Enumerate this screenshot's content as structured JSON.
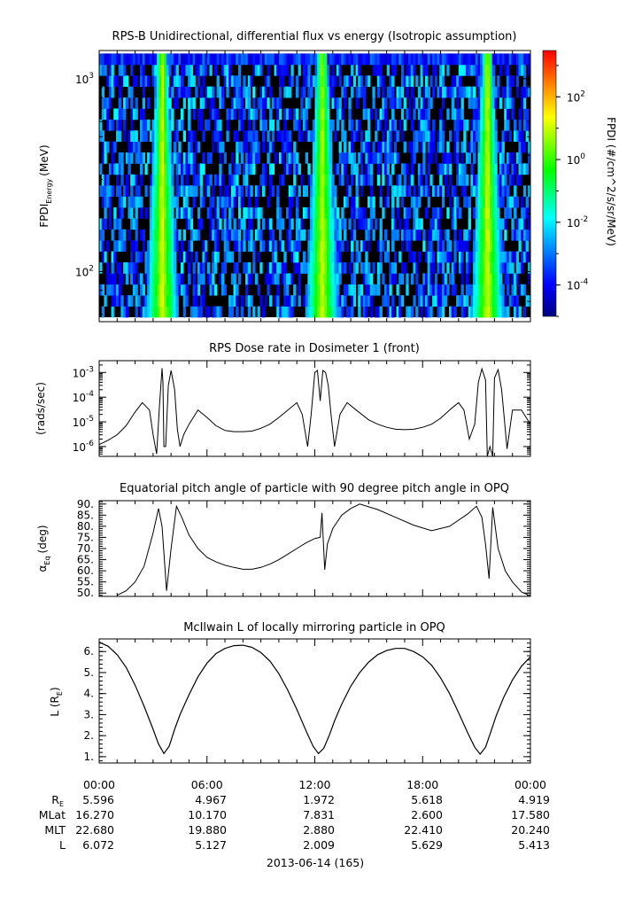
{
  "chart_data": [
    {
      "type": "heatmap",
      "title": "RPS-B  Unidirectional, differential flux vs energy (Isotropic assumption)",
      "ylabel_main": "FPDI",
      "ylabel_sub": "Energy",
      "ylabel_unit": "(MeV)",
      "y_scale": "log",
      "ylim": [
        55,
        1400
      ],
      "y_ticks": [
        {
          "value": 100,
          "base": "10",
          "exp": "2"
        },
        {
          "value": 1000,
          "base": "10",
          "exp": "3"
        }
      ],
      "energy_bins_range": [
        58,
        1350
      ],
      "flux_peak_times_hours": [
        3.5,
        12.4,
        21.6
      ],
      "colorbar": {
        "label": "FPDI (#/cm^2/s/sr/MeV)",
        "scale": "log",
        "range": [
          1e-05,
          3000
        ],
        "ticks": [
          {
            "value": 0.0001,
            "base": "10",
            "exp": "-4"
          },
          {
            "value": 0.01,
            "base": "10",
            "exp": "-2"
          },
          {
            "value": 1,
            "base": "10",
            "exp": "0"
          },
          {
            "value": 100,
            "base": "10",
            "exp": "2"
          }
        ],
        "colormap": [
          "#000080",
          "#0000ff",
          "#00ffff",
          "#00ff00",
          "#ffff00",
          "#ff0000"
        ]
      }
    },
    {
      "type": "line",
      "title": "RPS  Dose rate in Dosimeter 1 (front)",
      "ylabel": "(rads/sec)",
      "y_scale": "log",
      "ylim": [
        4e-07,
        0.003
      ],
      "y_ticks": [
        {
          "value": 1e-06,
          "base": "10",
          "exp": "-6"
        },
        {
          "value": 1e-05,
          "base": "10",
          "exp": "-5"
        },
        {
          "value": 0.0001,
          "base": "10",
          "exp": "-4"
        },
        {
          "value": 0.001,
          "base": "10",
          "exp": "-3"
        }
      ],
      "series": [
        {
          "x": [
            0,
            0.5,
            1.0,
            1.5,
            2.0,
            2.4,
            2.8,
            3.0,
            3.2,
            3.35,
            3.5,
            3.55,
            3.6,
            3.7,
            3.85,
            4.0,
            4.2,
            4.35,
            4.5,
            4.7,
            5.0,
            5.5,
            6.0,
            6.5,
            7.0,
            7.5,
            8.0,
            8.5,
            9.0,
            9.5,
            10.0,
            10.5,
            11.0,
            11.3,
            11.6,
            11.8,
            12.0,
            12.15,
            12.3,
            12.45,
            12.6,
            12.75,
            12.9,
            13.1,
            13.4,
            13.8,
            14.3,
            15.0,
            15.5,
            16.0,
            16.5,
            17.0,
            17.5,
            18.0,
            18.5,
            19.0,
            19.5,
            20.0,
            20.3,
            20.6,
            20.9,
            21.1,
            21.3,
            21.5,
            21.6,
            21.75,
            21.9,
            22.0,
            22.2,
            22.4,
            22.7,
            23.0,
            23.5,
            24.0
          ],
          "y": [
            1.2e-06,
            1.8e-06,
            3e-06,
            7e-06,
            2.5e-05,
            6e-05,
            3e-05,
            3e-06,
            5e-07,
            4e-05,
            0.0015,
            0.0004,
            1e-06,
            1e-06,
            0.0003,
            0.0012,
            0.0002,
            5e-06,
            1e-06,
            3e-06,
            8e-06,
            3e-05,
            1.5e-05,
            7e-06,
            4.5e-06,
            4e-06,
            4e-06,
            4.2e-06,
            5.5e-06,
            8e-06,
            1.5e-05,
            3e-05,
            6e-05,
            2e-05,
            1e-06,
            2e-05,
            0.001,
            0.0012,
            7e-05,
            0.0012,
            0.001,
            0.0003,
            2e-05,
            1e-06,
            2e-05,
            6e-05,
            3e-05,
            1.2e-05,
            8e-06,
            6e-06,
            5e-06,
            4.8e-06,
            5e-06,
            6e-06,
            8e-06,
            1.4e-05,
            3e-05,
            6e-05,
            3e-05,
            2e-06,
            8e-06,
            0.0004,
            0.0014,
            0.0005,
            4e-07,
            1e-06,
            4e-07,
            0.0006,
            0.0013,
            0.0002,
            8e-07,
            3e-05,
            3e-05,
            8e-06
          ]
        }
      ]
    },
    {
      "type": "line",
      "title": "Equatorial pitch angle of particle with 90 degree pitch angle in OPQ",
      "ylabel_main": "α",
      "ylabel_sub": "Eq",
      "ylabel_unit": "(deg)",
      "ylim": [
        48.5,
        91.5
      ],
      "y_ticks": [
        50,
        55,
        60,
        65,
        70,
        75,
        80,
        85,
        90
      ],
      "y_tick_labels": [
        "50.",
        "55.",
        "60.",
        "65.",
        "70.",
        "75.",
        "80.",
        "85.",
        "90."
      ],
      "series": [
        {
          "x": [
            1.0,
            1.5,
            2.0,
            2.5,
            3.0,
            3.3,
            3.5,
            3.75,
            4.0,
            4.3,
            4.6,
            5.0,
            5.5,
            6.0,
            6.5,
            7.0,
            7.5,
            8.0,
            8.5,
            9.0,
            9.5,
            10.0,
            10.5,
            11.0,
            11.5,
            12.0,
            12.3,
            12.4,
            12.55,
            12.7,
            13.0,
            13.5,
            14.0,
            14.5,
            15.5,
            16.5,
            17.5,
            18.5,
            19.5,
            20.5,
            21.0,
            21.3,
            21.5,
            21.7,
            21.9,
            22.2,
            22.6,
            23.0,
            23.5,
            23.9
          ],
          "y": [
            49,
            51,
            55,
            62,
            77,
            88,
            80,
            51,
            70,
            89,
            84,
            76,
            70,
            66,
            64,
            62.5,
            61.5,
            60.7,
            60.7,
            61.5,
            63,
            65,
            67.5,
            70,
            72.5,
            74.5,
            75,
            86,
            60.5,
            72,
            79,
            85,
            88,
            90,
            87.5,
            84,
            80.5,
            78,
            80,
            85.5,
            89,
            84,
            72,
            56.5,
            88.5,
            70,
            60,
            55,
            50.5,
            49
          ]
        }
      ]
    },
    {
      "type": "line",
      "title": "McIlwain L of locally mirroring particle in OPQ",
      "ylabel_main": "L (R",
      "ylabel_sub": "E",
      "ylabel_unit": ")",
      "ylim": [
        0.7,
        6.6
      ],
      "y_ticks": [
        1,
        2,
        3,
        4,
        5,
        6
      ],
      "y_tick_labels": [
        "1.",
        "2.",
        "3.",
        "4.",
        "5.",
        "6."
      ],
      "series": [
        {
          "x": [
            0,
            0.5,
            1.0,
            1.5,
            2.0,
            2.5,
            3.0,
            3.3,
            3.6,
            3.9,
            4.2,
            4.5,
            5.0,
            5.5,
            6.0,
            6.5,
            7.0,
            7.5,
            8.0,
            8.5,
            9.0,
            9.5,
            10.0,
            10.5,
            11.0,
            11.5,
            11.9,
            12.2,
            12.5,
            12.8,
            13.1,
            13.5,
            14.0,
            14.5,
            15.0,
            15.5,
            16.0,
            16.5,
            17.0,
            17.5,
            18.0,
            18.5,
            19.0,
            19.5,
            20.0,
            20.5,
            20.9,
            21.2,
            21.5,
            21.8,
            22.1,
            22.5,
            23.0,
            23.5,
            24.0
          ],
          "y": [
            6.45,
            6.25,
            5.85,
            5.25,
            4.4,
            3.4,
            2.3,
            1.6,
            1.15,
            1.5,
            2.3,
            3.0,
            3.95,
            4.8,
            5.45,
            5.9,
            6.15,
            6.28,
            6.3,
            6.2,
            5.95,
            5.55,
            4.95,
            4.15,
            3.25,
            2.25,
            1.5,
            1.15,
            1.4,
            2.0,
            2.7,
            3.5,
            4.35,
            5.0,
            5.5,
            5.85,
            6.05,
            6.15,
            6.15,
            6.0,
            5.75,
            5.35,
            4.75,
            4.0,
            3.1,
            2.15,
            1.45,
            1.12,
            1.45,
            2.2,
            2.95,
            3.8,
            4.65,
            5.3,
            5.75
          ]
        }
      ]
    }
  ],
  "time_axis": {
    "range_hours": [
      0,
      24
    ],
    "major_ticks_hours": [
      0,
      6,
      12,
      18,
      24
    ],
    "minor_step_hours": 1,
    "tick_labels": [
      "00:00",
      "06:00",
      "12:00",
      "18:00",
      "00:00"
    ]
  },
  "ephemeris": {
    "rows": [
      {
        "label_base": "R",
        "label_sub": "E",
        "values": [
          "5.596",
          "4.967",
          "1.972",
          "5.618",
          "4.919"
        ]
      },
      {
        "label_base": "MLat",
        "label_sub": "",
        "values": [
          "16.270",
          "10.170",
          "7.831",
          "2.600",
          "17.580"
        ]
      },
      {
        "label_base": "MLT",
        "label_sub": "",
        "values": [
          "22.680",
          "19.880",
          "2.880",
          "22.410",
          "20.240"
        ]
      },
      {
        "label_base": "L",
        "label_sub": "",
        "values": [
          "6.072",
          "5.127",
          "2.009",
          "5.629",
          "5.413"
        ]
      }
    ]
  },
  "date_label": "2013-06-14 (165)"
}
